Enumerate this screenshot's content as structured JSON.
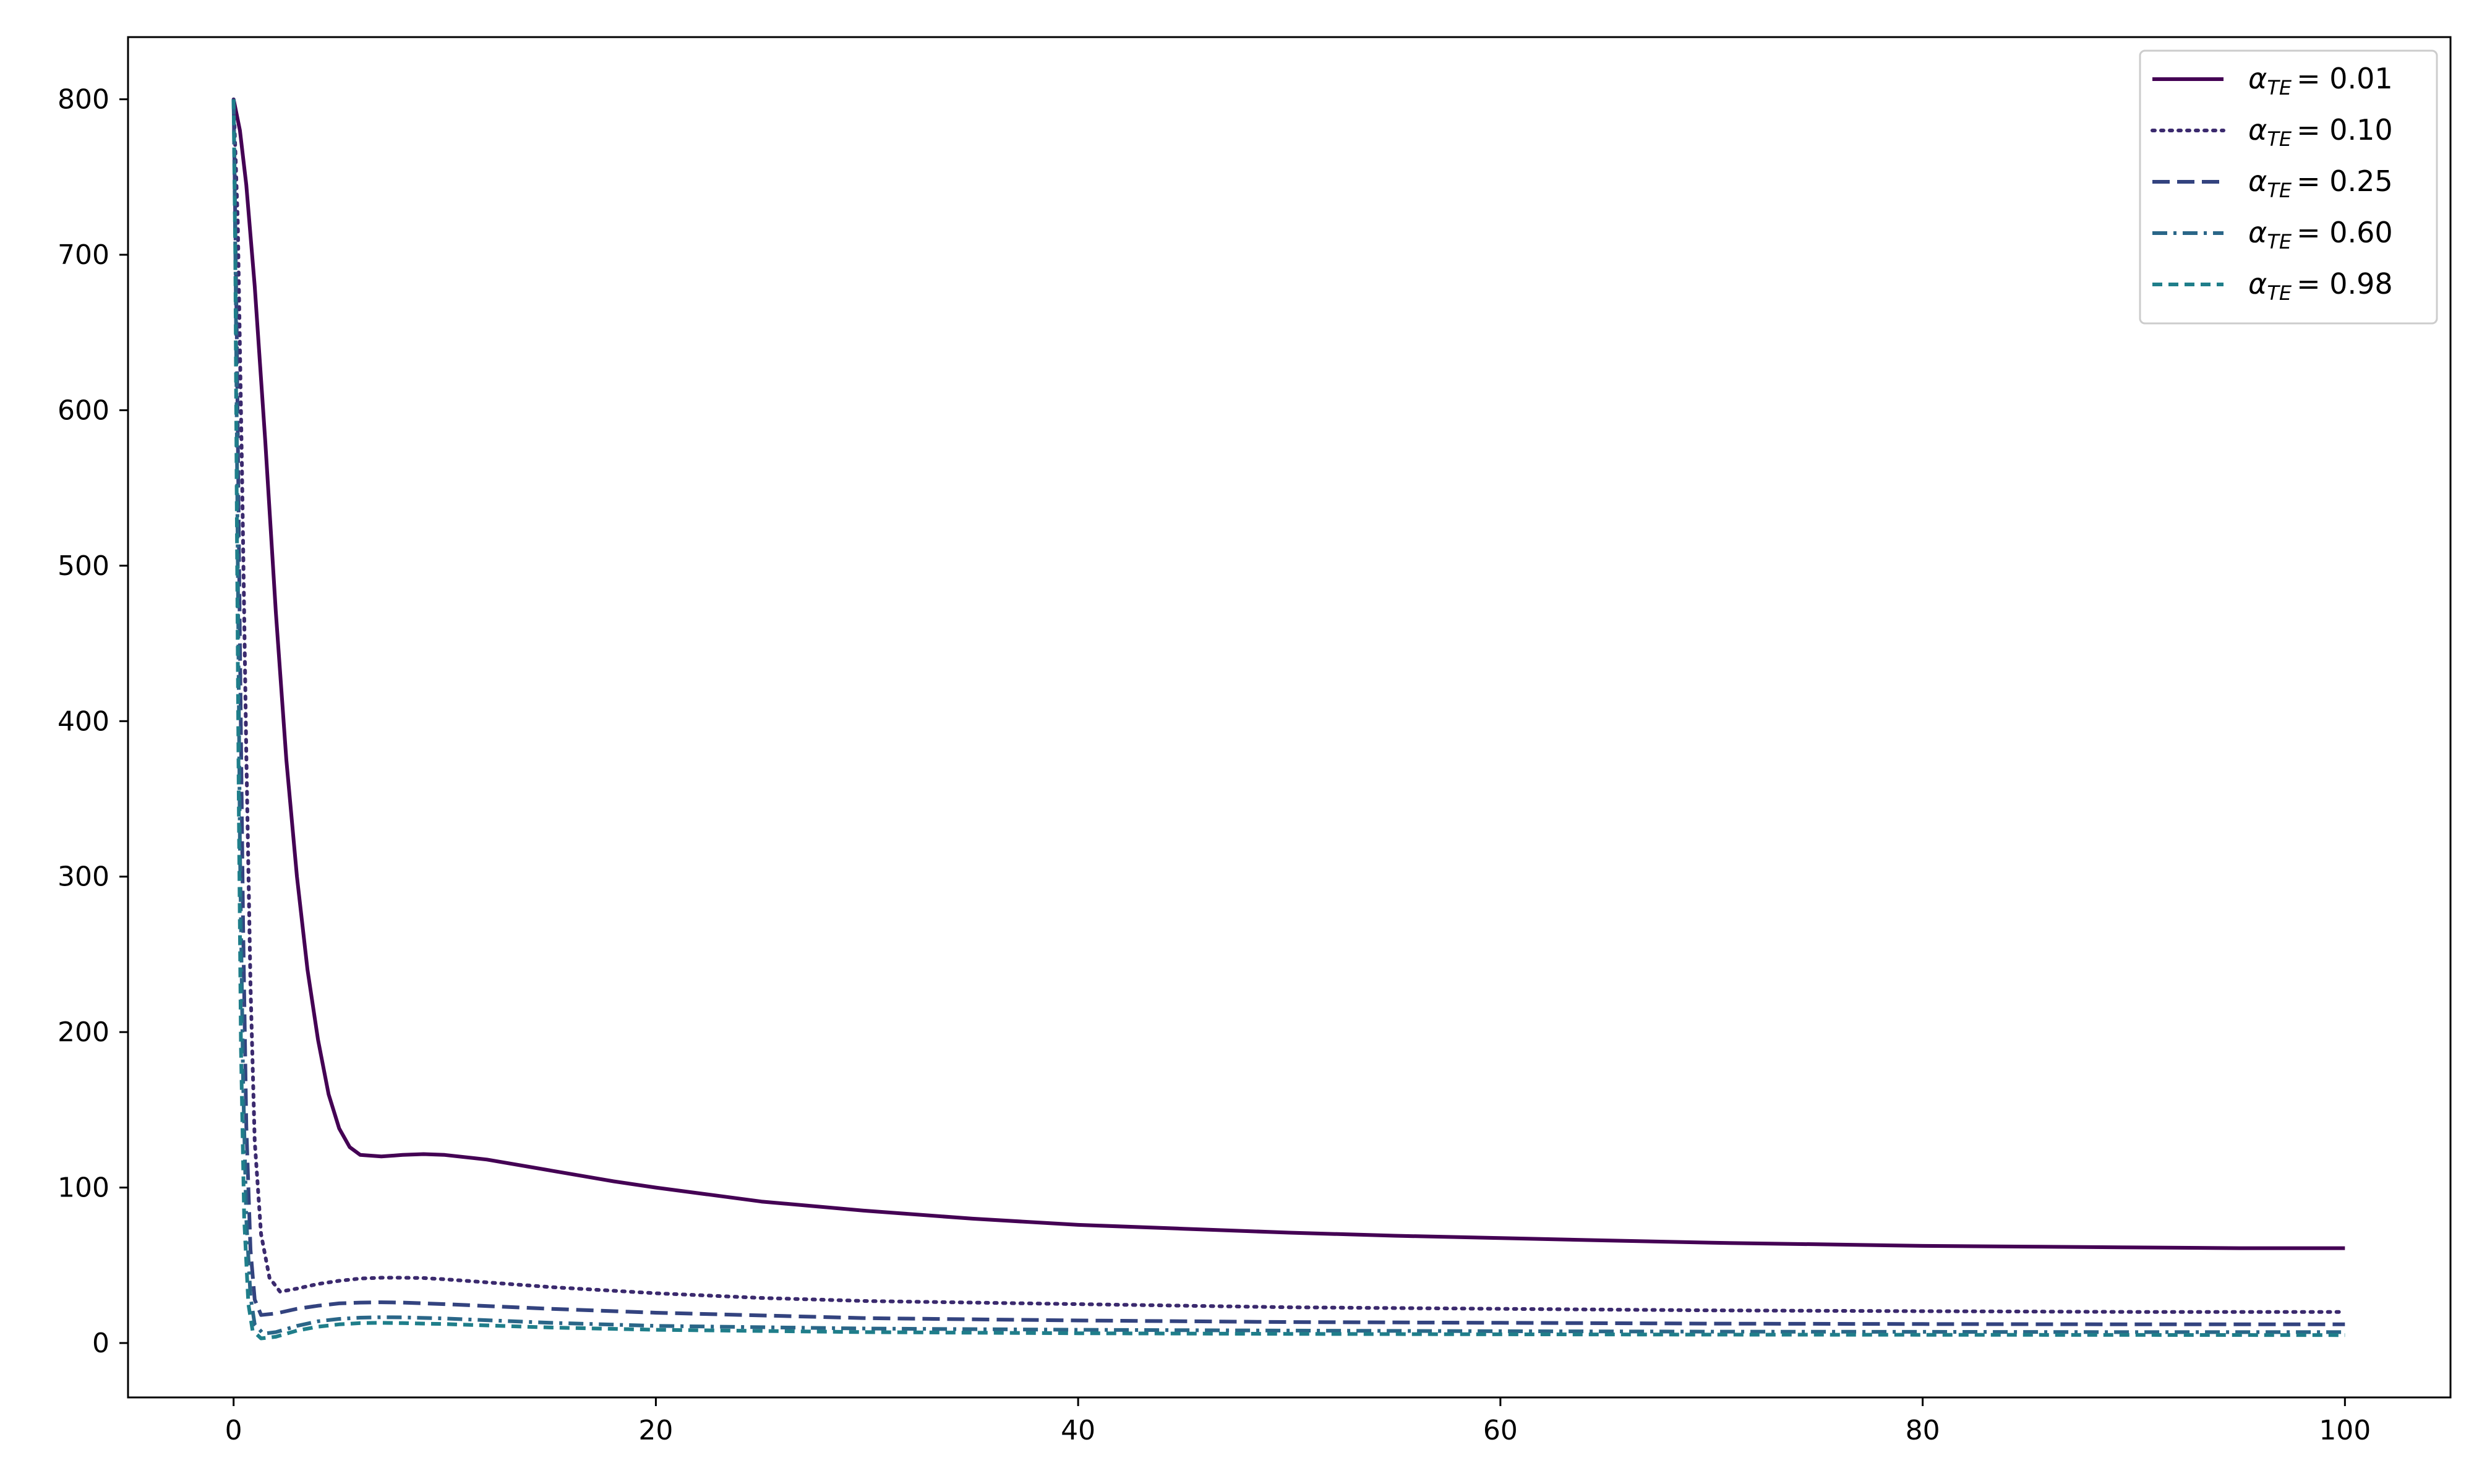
{
  "chart_data": {
    "type": "line",
    "title": "",
    "xlabel": "",
    "ylabel": "",
    "xlim": [
      -5,
      105
    ],
    "ylim": [
      -35,
      840
    ],
    "xticks": [
      0,
      20,
      40,
      60,
      80,
      100
    ],
    "yticks": [
      0,
      100,
      200,
      300,
      400,
      500,
      600,
      700,
      800
    ],
    "grid": false,
    "legend_position": "top-right",
    "series": [
      {
        "name_symbol": "α",
        "name_subscript": "TE",
        "name_value": "= 0.01",
        "color": "#440154",
        "dash": "solid",
        "points": [
          [
            0,
            800
          ],
          [
            0.3,
            780
          ],
          [
            0.6,
            745
          ],
          [
            1,
            680
          ],
          [
            1.5,
            580
          ],
          [
            2,
            470
          ],
          [
            2.5,
            375
          ],
          [
            3,
            300
          ],
          [
            3.5,
            240
          ],
          [
            4,
            195
          ],
          [
            4.5,
            160
          ],
          [
            5,
            138
          ],
          [
            5.5,
            126
          ],
          [
            6,
            121
          ],
          [
            7,
            120
          ],
          [
            8,
            121
          ],
          [
            9,
            121.5
          ],
          [
            10,
            121
          ],
          [
            12,
            118
          ],
          [
            15,
            111
          ],
          [
            18,
            104
          ],
          [
            20,
            100
          ],
          [
            25,
            91
          ],
          [
            30,
            85
          ],
          [
            35,
            80
          ],
          [
            40,
            76
          ],
          [
            45,
            73.5
          ],
          [
            50,
            71
          ],
          [
            55,
            69
          ],
          [
            60,
            67.5
          ],
          [
            65,
            66
          ],
          [
            70,
            64.5
          ],
          [
            75,
            63.5
          ],
          [
            80,
            62.5
          ],
          [
            85,
            62
          ],
          [
            90,
            61.5
          ],
          [
            95,
            61
          ],
          [
            100,
            61
          ]
        ]
      },
      {
        "name_symbol": "α",
        "name_subscript": "TE",
        "name_value": "= 0.10",
        "color": "#3b2a6e",
        "dash": "dotted",
        "points": [
          [
            0,
            800
          ],
          [
            0.2,
            720
          ],
          [
            0.4,
            560
          ],
          [
            0.6,
            380
          ],
          [
            0.8,
            230
          ],
          [
            1,
            130
          ],
          [
            1.3,
            70
          ],
          [
            1.7,
            42
          ],
          [
            2.2,
            33
          ],
          [
            3,
            35
          ],
          [
            4,
            38
          ],
          [
            5,
            40
          ],
          [
            6,
            41.5
          ],
          [
            7,
            42
          ],
          [
            8,
            42
          ],
          [
            9,
            41.8
          ],
          [
            10,
            41
          ],
          [
            12,
            39
          ],
          [
            15,
            36
          ],
          [
            20,
            32
          ],
          [
            25,
            29
          ],
          [
            30,
            27
          ],
          [
            40,
            25
          ],
          [
            50,
            23
          ],
          [
            60,
            22
          ],
          [
            70,
            21
          ],
          [
            80,
            20.5
          ],
          [
            90,
            20
          ],
          [
            100,
            20
          ]
        ]
      },
      {
        "name_symbol": "α",
        "name_subscript": "TE",
        "name_value": "= 0.25",
        "color": "#33437f",
        "dash": "dashed",
        "points": [
          [
            0,
            800
          ],
          [
            0.15,
            650
          ],
          [
            0.3,
            450
          ],
          [
            0.45,
            270
          ],
          [
            0.6,
            140
          ],
          [
            0.8,
            60
          ],
          [
            1,
            28
          ],
          [
            1.3,
            18
          ],
          [
            2,
            19
          ],
          [
            3,
            22
          ],
          [
            4,
            24
          ],
          [
            5,
            25.5
          ],
          [
            6,
            26
          ],
          [
            7,
            26.2
          ],
          [
            8,
            26
          ],
          [
            10,
            25
          ],
          [
            15,
            22
          ],
          [
            20,
            19.5
          ],
          [
            30,
            16
          ],
          [
            40,
            14.5
          ],
          [
            50,
            13.5
          ],
          [
            60,
            13
          ],
          [
            70,
            12.5
          ],
          [
            80,
            12.2
          ],
          [
            90,
            12
          ],
          [
            100,
            12
          ]
        ]
      },
      {
        "name_symbol": "α",
        "name_subscript": "TE",
        "name_value": "= 0.60",
        "color": "#2a6688",
        "dash": "dashdot",
        "points": [
          [
            0,
            800
          ],
          [
            0.1,
            680
          ],
          [
            0.2,
            500
          ],
          [
            0.3,
            320
          ],
          [
            0.45,
            170
          ],
          [
            0.6,
            80
          ],
          [
            0.8,
            30
          ],
          [
            1,
            12
          ],
          [
            1.4,
            6
          ],
          [
            2,
            7
          ],
          [
            3,
            11
          ],
          [
            4,
            14
          ],
          [
            5,
            15.5
          ],
          [
            6,
            16.3
          ],
          [
            7,
            16.6
          ],
          [
            8,
            16.5
          ],
          [
            10,
            15.8
          ],
          [
            15,
            13
          ],
          [
            20,
            11
          ],
          [
            30,
            9.3
          ],
          [
            40,
            8.5
          ],
          [
            50,
            8
          ],
          [
            60,
            7.6
          ],
          [
            70,
            7.3
          ],
          [
            80,
            7.2
          ],
          [
            90,
            7
          ],
          [
            100,
            7
          ]
        ]
      },
      {
        "name_symbol": "α",
        "name_subscript": "TE",
        "name_value": "= 0.98",
        "color": "#1f7e8a",
        "dash": "shortdash",
        "points": [
          [
            0,
            800
          ],
          [
            0.08,
            700
          ],
          [
            0.16,
            520
          ],
          [
            0.25,
            340
          ],
          [
            0.35,
            190
          ],
          [
            0.5,
            80
          ],
          [
            0.7,
            25
          ],
          [
            0.9,
            8
          ],
          [
            1.3,
            3
          ],
          [
            2,
            4
          ],
          [
            3,
            8
          ],
          [
            4,
            10.5
          ],
          [
            5,
            12
          ],
          [
            6,
            12.8
          ],
          [
            7,
            13
          ],
          [
            8,
            12.8
          ],
          [
            10,
            12.2
          ],
          [
            15,
            10
          ],
          [
            20,
            8.5
          ],
          [
            30,
            7
          ],
          [
            40,
            6.3
          ],
          [
            50,
            5.9
          ],
          [
            60,
            5.6
          ],
          [
            70,
            5.4
          ],
          [
            80,
            5.3
          ],
          [
            90,
            5.2
          ],
          [
            100,
            5.1
          ]
        ]
      }
    ]
  }
}
